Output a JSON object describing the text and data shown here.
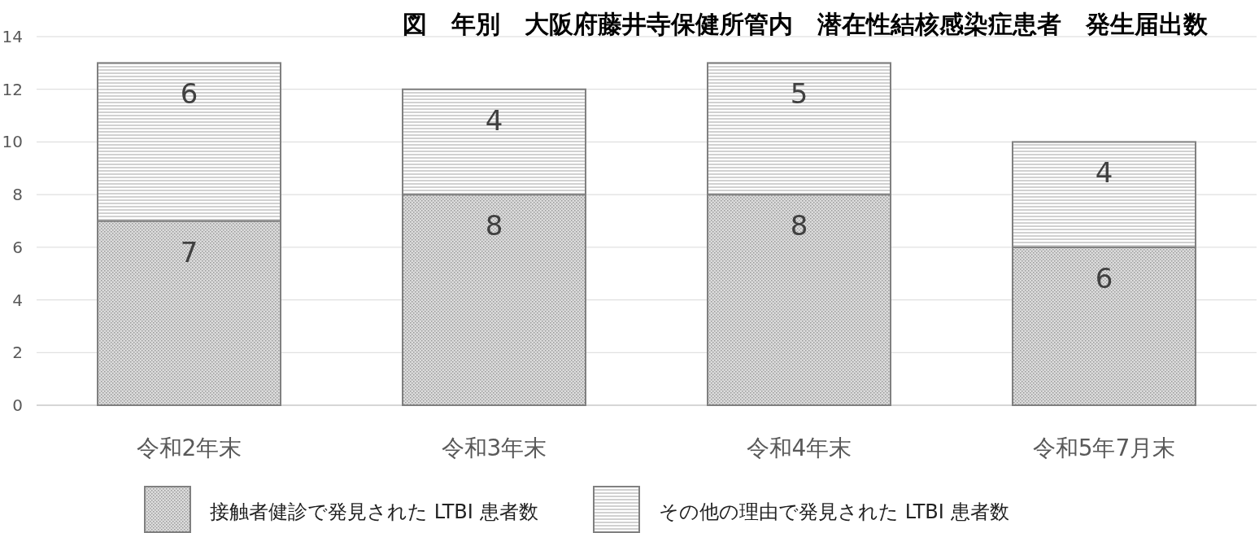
{
  "chart_data": {
    "type": "bar",
    "title": "図　年別　大阪府藤井寺保健所管内　潜在性結核感染症患者　発生届出数",
    "categories": [
      "令和2年末",
      "令和3年末",
      "令和4年末",
      "令和5年7月末"
    ],
    "stacked": true,
    "series": [
      {
        "name": "接触者健診で発見された LTBI 患者数",
        "color": "#808080",
        "values": [
          7,
          8,
          8,
          6
        ]
      },
      {
        "name": "その他の理由で発見された LTBI 患者数",
        "color": "#808080",
        "values": [
          6,
          4,
          5,
          4
        ]
      }
    ],
    "ylim": [
      0,
      14
    ],
    "yticks": [
      0,
      2,
      4,
      6,
      8,
      10,
      12,
      14
    ],
    "grid": "y",
    "legend": "bottom",
    "data_labels": true
  }
}
